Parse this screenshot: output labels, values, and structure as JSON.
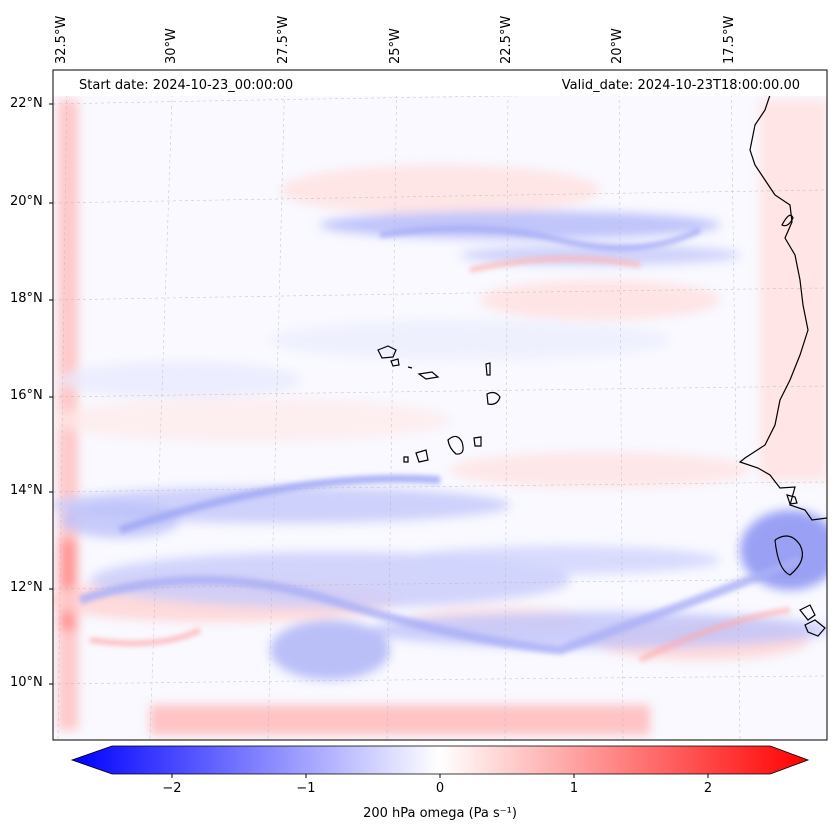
{
  "map": {
    "header": {
      "start_date": "Start date: 2024-10-23_00:00:00",
      "valid_date": "Valid_date: 2024-10-23T18:00:00.00"
    },
    "longitude_labels": [
      "32.5°W",
      "30°W",
      "27.5°W",
      "25°W",
      "22.5°W",
      "20°W",
      "17.5°W"
    ],
    "latitude_labels": [
      "22°N",
      "20°N",
      "18°N",
      "16°N",
      "14°N",
      "12°N",
      "10°N"
    ],
    "colorbar": {
      "title": "200 hPa omega (Pa s⁻¹)",
      "ticks": [
        "−2",
        "−1",
        "0",
        "1",
        "2"
      ],
      "range": [
        -2.5,
        2.5
      ],
      "colormap": "bwr",
      "low_color": "#0000ff",
      "mid_color": "#ffffff",
      "high_color": "#ff0000"
    },
    "coastline_color": "#000000"
  }
}
